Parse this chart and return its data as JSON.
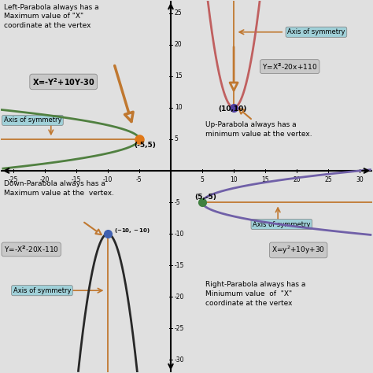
{
  "bg_color": "#e0e0e0",
  "xlim": [
    -27,
    32
  ],
  "ylim": [
    -32,
    27
  ],
  "x_ticks": [
    -25,
    -20,
    -15,
    -10,
    -5,
    5,
    10,
    15,
    20,
    25,
    30
  ],
  "y_ticks": [
    -30,
    -25,
    -20,
    -15,
    -10,
    -5,
    5,
    10,
    15,
    20,
    25
  ],
  "up_parabola_color": "#c06060",
  "up_vertex_color": "#5040a0",
  "down_parabola_color": "#282828",
  "down_vertex_color": "#4060b0",
  "left_parabola_color": "#508040",
  "left_vertex_color": "#e07818",
  "right_parabola_color": "#7060a8",
  "right_vertex_color": "#408040",
  "axis_sym_color": "#c07830",
  "label_bg_blue": "#a0d0d8",
  "label_bg_gray": "#c8c8c8",
  "label_bg_light": "#d8d8d8"
}
